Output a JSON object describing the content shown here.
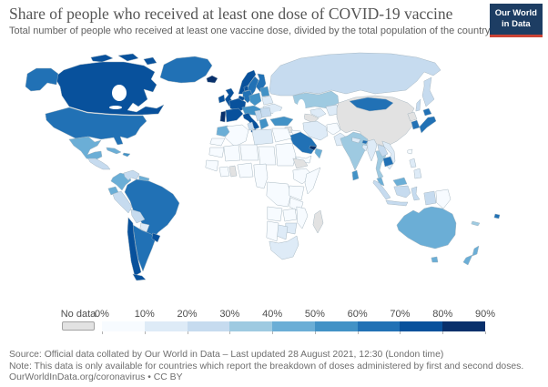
{
  "header": {
    "title": "Share of people who received at least one dose of COVID-19 vaccine",
    "subtitle": "Total number of people who received at least one vaccine dose, divided by the total population of the country."
  },
  "logo": {
    "line1": "Our World",
    "line2": "in Data",
    "background_color": "#1d3d63",
    "accent_color": "#cb4335"
  },
  "footer": {
    "source": "Source: Official data collated by Our World in Data – Last updated 28 August 2021, 12:30 (London time)",
    "note": "Note: This data is only available for countries which report the breakdown of doses administered by first and second doses.",
    "credit": "OurWorldInData.org/coronavirus • CC BY"
  },
  "chart_data": {
    "type": "choropleth_map",
    "title": "Share of people who received at least one dose of COVID-19 vaccine",
    "unit": "%",
    "legend": {
      "no_data_label": "No data",
      "tick_labels": [
        "0%",
        "10%",
        "20%",
        "30%",
        "40%",
        "50%",
        "60%",
        "70%",
        "80%",
        "90%"
      ],
      "bin_size": 10,
      "range": [
        0,
        90
      ],
      "colors": [
        "#f7fbff",
        "#deebf7",
        "#c6dbef",
        "#9ecae1",
        "#6baed6",
        "#4292c6",
        "#2171b5",
        "#08519c",
        "#08306b"
      ],
      "no_data_color": "#e2e2e2"
    },
    "countries": [
      {
        "id": "canada",
        "name": "Canada",
        "value": 73
      },
      {
        "id": "united-states",
        "name": "United States",
        "value": 61
      },
      {
        "id": "greenland",
        "name": "Greenland",
        "value": 66
      },
      {
        "id": "iceland",
        "name": "Iceland",
        "value": 81
      },
      {
        "id": "mexico",
        "name": "Mexico",
        "value": 44
      },
      {
        "id": "central-america",
        "name": "Central America",
        "value": 22
      },
      {
        "id": "cuba",
        "name": "Cuba",
        "value": 48
      },
      {
        "id": "dominican-republic",
        "name": "Dominican Republic",
        "value": 54
      },
      {
        "id": "colombia",
        "name": "Colombia",
        "value": 42
      },
      {
        "id": "venezuela",
        "name": "Venezuela",
        "value": 23
      },
      {
        "id": "guyanas",
        "name": "Guyana & Suriname",
        "value": 45
      },
      {
        "id": "ecuador",
        "name": "Ecuador",
        "value": 48
      },
      {
        "id": "peru",
        "name": "Peru",
        "value": 28
      },
      {
        "id": "brazil",
        "name": "Brazil",
        "value": 63
      },
      {
        "id": "bolivia",
        "name": "Bolivia",
        "value": 25
      },
      {
        "id": "paraguay",
        "name": "Paraguay",
        "value": 18
      },
      {
        "id": "chile",
        "name": "Chile",
        "value": 74
      },
      {
        "id": "argentina",
        "name": "Argentina",
        "value": 62
      },
      {
        "id": "uruguay",
        "name": "Uruguay",
        "value": 77
      },
      {
        "id": "ireland",
        "name": "Ireland",
        "value": 72
      },
      {
        "id": "united-kingdom",
        "name": "United Kingdom",
        "value": 70
      },
      {
        "id": "portugal",
        "name": "Portugal",
        "value": 85
      },
      {
        "id": "spain",
        "name": "Spain",
        "value": 78
      },
      {
        "id": "france",
        "name": "France",
        "value": 72
      },
      {
        "id": "benelux",
        "name": "Netherlands & Belgium",
        "value": 74
      },
      {
        "id": "germany",
        "name": "Germany",
        "value": 64
      },
      {
        "id": "denmark",
        "name": "Denmark",
        "value": 76
      },
      {
        "id": "norway",
        "name": "Norway",
        "value": 75
      },
      {
        "id": "sweden",
        "name": "Sweden",
        "value": 67
      },
      {
        "id": "finland",
        "name": "Finland",
        "value": 68
      },
      {
        "id": "baltic-states",
        "name": "Baltic states",
        "value": 55
      },
      {
        "id": "belarus",
        "name": "Belarus",
        "value": 16
      },
      {
        "id": "ukraine",
        "name": "Ukraine",
        "value": 14
      },
      {
        "id": "poland",
        "name": "Poland",
        "value": 50
      },
      {
        "id": "central-europe",
        "name": "Central Europe",
        "value": 57
      },
      {
        "id": "italy",
        "name": "Italy",
        "value": 71
      },
      {
        "id": "balkans",
        "name": "Balkans",
        "value": 28
      },
      {
        "id": "romania-bulgaria",
        "name": "Romania & Bulgaria",
        "value": 23
      },
      {
        "id": "greece",
        "name": "Greece",
        "value": 57
      },
      {
        "id": "russia",
        "name": "Russia",
        "value": 27
      },
      {
        "id": "kazakhstan",
        "name": "Kazakhstan",
        "value": 35
      },
      {
        "id": "uzbekistan",
        "name": "Uzbekistan",
        "value": 12
      },
      {
        "id": "turkmenistan",
        "name": "Turkmenistan",
        "value": null
      },
      {
        "id": "kyrgyzstan-tajikistan",
        "name": "Kyrgyzstan & Tajikistan",
        "value": 13
      },
      {
        "id": "turkey",
        "name": "Turkey",
        "value": 57
      },
      {
        "id": "syria",
        "name": "Syria",
        "value": null
      },
      {
        "id": "iraq",
        "name": "Iraq",
        "value": 8
      },
      {
        "id": "iran",
        "name": "Iran",
        "value": 17
      },
      {
        "id": "afghanistan",
        "name": "Afghanistan",
        "value": 3
      },
      {
        "id": "pakistan",
        "name": "Pakistan",
        "value": 16
      },
      {
        "id": "saudi-arabia",
        "name": "Saudi Arabia",
        "value": 62
      },
      {
        "id": "yemen",
        "name": "Yemen",
        "value": 1
      },
      {
        "id": "oman",
        "name": "Oman",
        "value": 45
      },
      {
        "id": "united-arab-emirates",
        "name": "United Arab Emirates",
        "value": 88
      },
      {
        "id": "egypt",
        "name": "Egypt",
        "value": 5
      },
      {
        "id": "india",
        "name": "India",
        "value": 34
      },
      {
        "id": "nepal",
        "name": "Nepal",
        "value": 18
      },
      {
        "id": "bhutan",
        "name": "Bhutan",
        "value": 63
      },
      {
        "id": "bangladesh",
        "name": "Bangladesh",
        "value": 13
      },
      {
        "id": "sri-lanka",
        "name": "Sri Lanka",
        "value": 55
      },
      {
        "id": "myanmar",
        "name": "Myanmar",
        "value": 12
      },
      {
        "id": "thailand",
        "name": "Thailand",
        "value": 30
      },
      {
        "id": "laos",
        "name": "Laos",
        "value": 22
      },
      {
        "id": "vietnam",
        "name": "Vietnam",
        "value": 19
      },
      {
        "id": "cambodia",
        "name": "Cambodia",
        "value": 60
      },
      {
        "id": "malaysia",
        "name": "Malaysia",
        "value": 46
      },
      {
        "id": "indonesia",
        "name": "Indonesia",
        "value": 22
      },
      {
        "id": "philippines",
        "name": "Philippines",
        "value": 14
      },
      {
        "id": "taiwan",
        "name": "Taiwan",
        "value": 3
      },
      {
        "id": "china",
        "name": "China",
        "value": null
      },
      {
        "id": "mongolia",
        "name": "Mongolia",
        "value": 65
      },
      {
        "id": "north-korea",
        "name": "North Korea",
        "value": null
      },
      {
        "id": "south-korea",
        "name": "South Korea",
        "value": 60
      },
      {
        "id": "japan",
        "name": "Japan",
        "value": 60
      },
      {
        "id": "australia",
        "name": "Australia",
        "value": 43
      },
      {
        "id": "new-zealand",
        "name": "New Zealand",
        "value": 40
      },
      {
        "id": "fiji",
        "name": "Fiji",
        "value": 65
      },
      {
        "id": "new-caledonia",
        "name": "New Caledonia",
        "value": 32
      },
      {
        "id": "papua-new-guinea",
        "name": "Papua New Guinea",
        "value": 2
      },
      {
        "id": "morocco",
        "name": "Morocco",
        "value": 46
      },
      {
        "id": "western-sahara",
        "name": "Western Sahara",
        "value": 3
      },
      {
        "id": "algeria",
        "name": "Algeria",
        "value": 8
      },
      {
        "id": "tunisia",
        "name": "Tunisia",
        "value": 28
      },
      {
        "id": "libya",
        "name": "Libya",
        "value": 12
      },
      {
        "id": "mauritania",
        "name": "Mauritania",
        "value": 5
      },
      {
        "id": "mali",
        "name": "Mali",
        "value": 2
      },
      {
        "id": "niger",
        "name": "Niger",
        "value": 1
      },
      {
        "id": "chad",
        "name": "Chad",
        "value": 2
      },
      {
        "id": "sudan",
        "name": "Sudan",
        "value": 2
      },
      {
        "id": "eritrea-djibouti",
        "name": "Eritrea & Djibouti",
        "value": null
      },
      {
        "id": "ethiopia",
        "name": "Ethiopia",
        "value": 2
      },
      {
        "id": "somalia",
        "name": "Somalia",
        "value": 5
      },
      {
        "id": "senegal-guinea",
        "name": "Senegal & Guinea",
        "value": 4
      },
      {
        "id": "ivory-coast",
        "name": "Côte d'Ivoire",
        "value": 5
      },
      {
        "id": "ghana",
        "name": "Ghana",
        "value": null
      },
      {
        "id": "nigeria",
        "name": "Nigeria",
        "value": 2
      },
      {
        "id": "cameroon-gabon",
        "name": "Cameroon & Gabon",
        "value": 2
      },
      {
        "id": "kenya-uganda",
        "name": "Kenya & Uganda",
        "value": 3
      },
      {
        "id": "tanzania",
        "name": "Tanzania",
        "value": 1
      },
      {
        "id": "dr-congo",
        "name": "Democratic Republic of Congo",
        "value": 1
      },
      {
        "id": "angola",
        "name": "Angola",
        "value": 5
      },
      {
        "id": "zambia",
        "name": "Zambia",
        "value": 3
      },
      {
        "id": "mozambique",
        "name": "Mozambique",
        "value": 5
      },
      {
        "id": "zimbabwe",
        "name": "Zimbabwe",
        "value": 16
      },
      {
        "id": "botswana",
        "name": "Botswana",
        "value": 10
      },
      {
        "id": "namibia",
        "name": "Namibia",
        "value": 8
      },
      {
        "id": "south-africa",
        "name": "South Africa",
        "value": 13
      },
      {
        "id": "madagascar",
        "name": "Madagascar",
        "value": null
      }
    ]
  }
}
